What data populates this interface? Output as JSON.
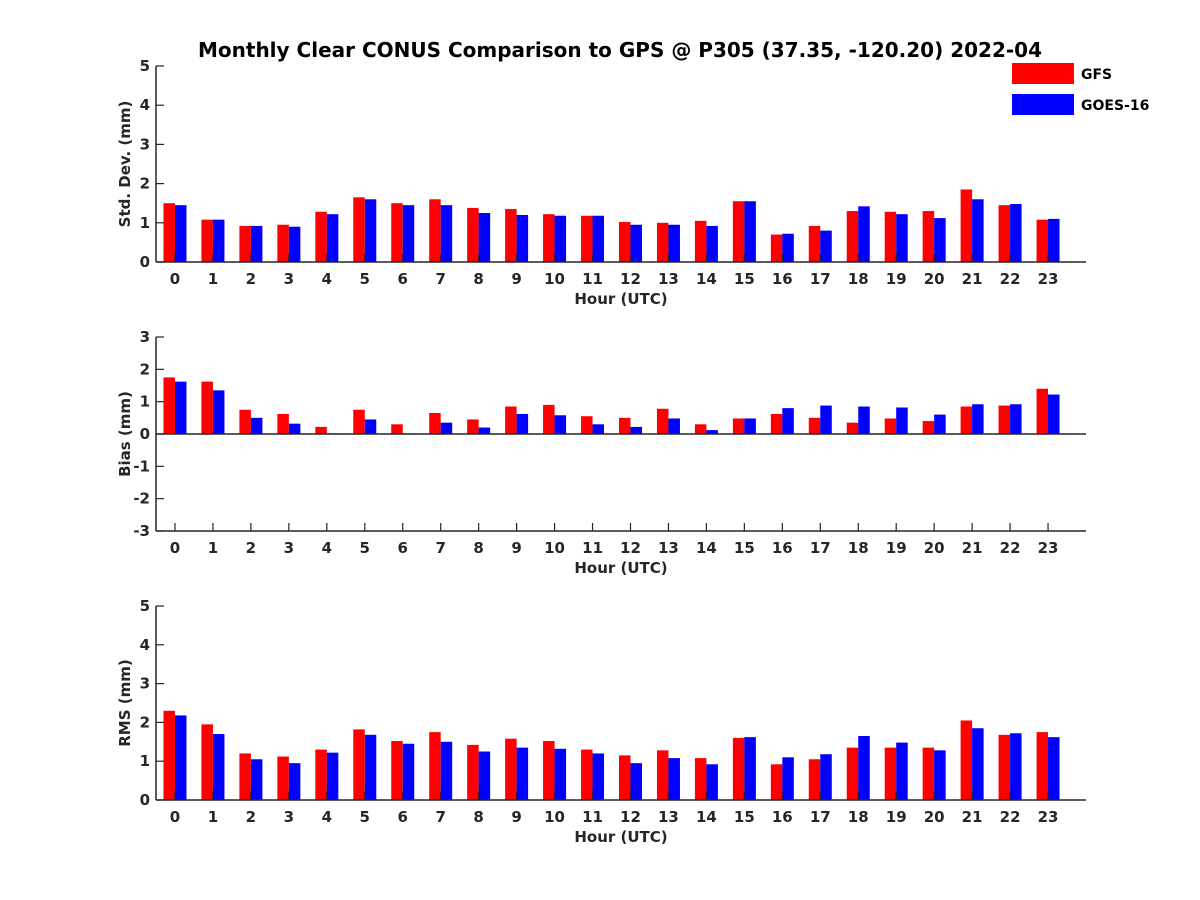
{
  "title": "Monthly Clear CONUS Comparison to GPS @ P305 (37.35, -120.20) 2022-04",
  "legend": {
    "placement": "top-right",
    "entries": [
      {
        "name": "GFS",
        "color": "#ff0000"
      },
      {
        "name": "GOES-16",
        "color": "#0000ff"
      }
    ]
  },
  "chart_data": [
    {
      "type": "bar",
      "ylabel": "Std. Dev. (mm)",
      "xlabel": "Hour (UTC)",
      "ylim": [
        0,
        5
      ],
      "yticks": [
        0,
        1,
        2,
        3,
        4,
        5
      ],
      "categories": [
        "0",
        "1",
        "2",
        "3",
        "4",
        "5",
        "6",
        "7",
        "8",
        "9",
        "10",
        "11",
        "12",
        "13",
        "14",
        "15",
        "16",
        "17",
        "18",
        "19",
        "20",
        "21",
        "22",
        "23"
      ],
      "grid": false,
      "series": [
        {
          "name": "GFS",
          "color": "#ff0000",
          "values": [
            1.5,
            1.08,
            0.92,
            0.95,
            1.28,
            1.65,
            1.5,
            1.6,
            1.38,
            1.35,
            1.22,
            1.18,
            1.02,
            1.0,
            1.05,
            1.55,
            0.7,
            0.92,
            1.3,
            1.28,
            1.3,
            1.85,
            1.45,
            1.08
          ]
        },
        {
          "name": "GOES-16",
          "color": "#0000ff",
          "values": [
            1.45,
            1.08,
            0.92,
            0.9,
            1.22,
            1.6,
            1.45,
            1.45,
            1.25,
            1.2,
            1.18,
            1.18,
            0.95,
            0.95,
            0.92,
            1.55,
            0.72,
            0.8,
            1.42,
            1.22,
            1.12,
            1.6,
            1.48,
            1.1
          ]
        }
      ]
    },
    {
      "type": "bar",
      "ylabel": "Bias (mm)",
      "xlabel": "Hour (UTC)",
      "ylim": [
        -3,
        3
      ],
      "yticks": [
        -3,
        -2,
        -1,
        0,
        1,
        2,
        3
      ],
      "categories": [
        "0",
        "1",
        "2",
        "3",
        "4",
        "5",
        "6",
        "7",
        "8",
        "9",
        "10",
        "11",
        "12",
        "13",
        "14",
        "15",
        "16",
        "17",
        "18",
        "19",
        "20",
        "21",
        "22",
        "23"
      ],
      "grid": false,
      "series": [
        {
          "name": "GFS",
          "color": "#ff0000",
          "values": [
            1.75,
            1.62,
            0.75,
            0.62,
            0.22,
            0.75,
            0.3,
            0.65,
            0.45,
            0.85,
            0.9,
            0.55,
            0.5,
            0.78,
            0.3,
            0.48,
            0.62,
            0.5,
            0.35,
            0.48,
            0.4,
            0.85,
            0.88,
            1.4
          ]
        },
        {
          "name": "GOES-16",
          "color": "#0000ff",
          "values": [
            1.62,
            1.35,
            0.5,
            0.32,
            0.02,
            0.45,
            0.02,
            0.35,
            0.2,
            0.62,
            0.58,
            0.3,
            0.22,
            0.48,
            0.12,
            0.48,
            0.8,
            0.88,
            0.85,
            0.82,
            0.6,
            0.92,
            0.92,
            1.22
          ]
        }
      ]
    },
    {
      "type": "bar",
      "ylabel": "RMS (mm)",
      "xlabel": "Hour (UTC)",
      "ylim": [
        0,
        5
      ],
      "yticks": [
        0,
        1,
        2,
        3,
        4,
        5
      ],
      "categories": [
        "0",
        "1",
        "2",
        "3",
        "4",
        "5",
        "6",
        "7",
        "8",
        "9",
        "10",
        "11",
        "12",
        "13",
        "14",
        "15",
        "16",
        "17",
        "18",
        "19",
        "20",
        "21",
        "22",
        "23"
      ],
      "grid": false,
      "series": [
        {
          "name": "GFS",
          "color": "#ff0000",
          "values": [
            2.3,
            1.95,
            1.2,
            1.12,
            1.3,
            1.82,
            1.52,
            1.75,
            1.42,
            1.58,
            1.52,
            1.3,
            1.15,
            1.28,
            1.08,
            1.6,
            0.92,
            1.05,
            1.35,
            1.35,
            1.35,
            2.05,
            1.68,
            1.75
          ]
        },
        {
          "name": "GOES-16",
          "color": "#0000ff",
          "values": [
            2.18,
            1.7,
            1.05,
            0.95,
            1.22,
            1.68,
            1.45,
            1.5,
            1.25,
            1.35,
            1.32,
            1.2,
            0.95,
            1.08,
            0.92,
            1.62,
            1.1,
            1.18,
            1.65,
            1.48,
            1.28,
            1.85,
            1.72,
            1.62
          ]
        }
      ]
    }
  ]
}
